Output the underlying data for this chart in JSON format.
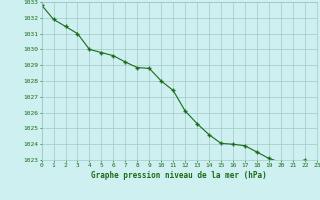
{
  "x": [
    0,
    1,
    2,
    3,
    4,
    5,
    6,
    7,
    8,
    9,
    10,
    11,
    12,
    13,
    14,
    15,
    16,
    17,
    18,
    19,
    20,
    21,
    22,
    23
  ],
  "y": [
    1032.8,
    1031.9,
    1031.45,
    1031.0,
    1030.0,
    1029.8,
    1029.6,
    1029.2,
    1028.85,
    1028.8,
    1028.0,
    1027.4,
    1026.1,
    1025.3,
    1024.6,
    1024.05,
    1024.0,
    1023.9,
    1023.5,
    1023.1,
    1022.85,
    1022.85,
    1023.0,
    1022.75
  ],
  "line_color": "#1a6b1a",
  "marker_color": "#1a6b1a",
  "bg_color": "#cff0f0",
  "grid_color": "#a0c8c8",
  "xlabel": "Graphe pression niveau de la mer (hPa)",
  "xlabel_color": "#1a6b1a",
  "tick_color": "#1a6b1a",
  "ylim_min": 1023,
  "ylim_max": 1033,
  "xlim_min": 0,
  "xlim_max": 23,
  "ytick_step": 1,
  "xticks": [
    0,
    1,
    2,
    3,
    4,
    5,
    6,
    7,
    8,
    9,
    10,
    11,
    12,
    13,
    14,
    15,
    16,
    17,
    18,
    19,
    20,
    21,
    22,
    23
  ]
}
